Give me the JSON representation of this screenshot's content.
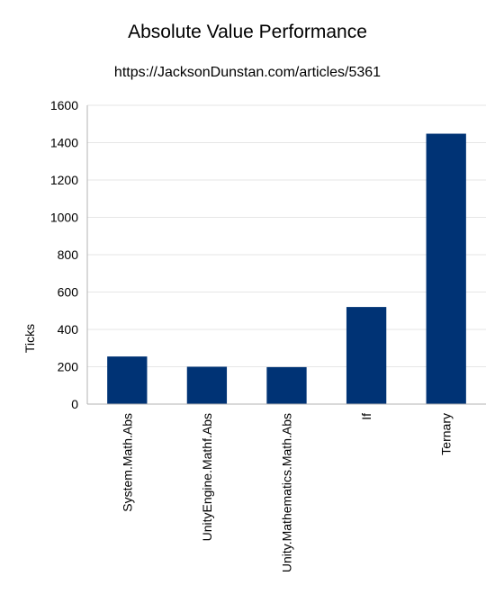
{
  "chart_data": {
    "type": "bar",
    "title": "Absolute Value Performance",
    "subtitle": "https://JacksonDunstan.com/articles/5361",
    "xlabel": "",
    "ylabel": "Ticks",
    "categories": [
      "System.Math.Abs",
      "UnityEngine.Mathf.Abs",
      "Unity.Mathematics.Math.Abs",
      "If",
      "Ternary"
    ],
    "values": [
      255,
      200,
      198,
      520,
      1448
    ],
    "ylim": [
      0,
      1600
    ],
    "yticks": [
      "0",
      "200",
      "400",
      "600",
      "800",
      "1000",
      "1200",
      "1400",
      "1600"
    ],
    "grid": true,
    "legend": "none",
    "bar_color": "#003375",
    "grid_color": "#e6e6e6",
    "axis_color": "#b3b3b3"
  }
}
